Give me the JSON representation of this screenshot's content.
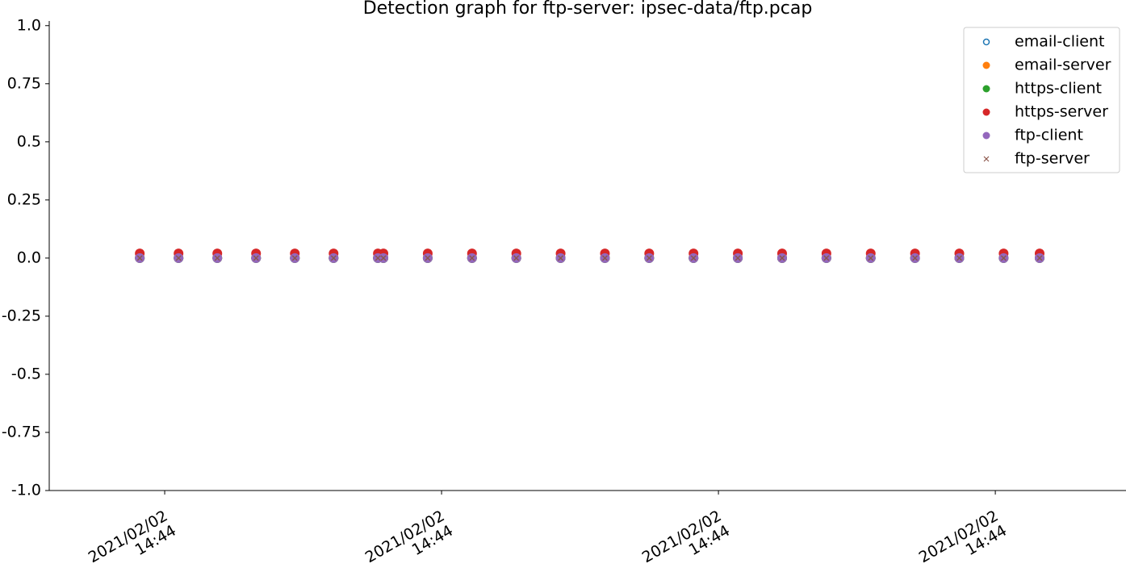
{
  "chart_data": {
    "type": "scatter",
    "title": "Detection graph for ftp-server: ipsec-data/ftp.pcap",
    "x": [
      -0.09,
      0.05,
      0.19,
      0.33,
      0.47,
      0.61,
      0.77,
      0.79,
      0.95,
      1.11,
      1.27,
      1.43,
      1.59,
      1.75,
      1.91,
      2.07,
      2.23,
      2.39,
      2.55,
      2.71,
      2.87,
      3.03,
      3.16
    ],
    "series": [
      {
        "name": "email-client",
        "color": "#1f77b4",
        "marker": "hollow",
        "values": [
          0,
          0,
          0,
          0,
          0,
          0,
          0,
          0,
          0,
          0,
          0,
          0,
          0,
          0,
          0,
          0,
          0,
          0,
          0,
          0,
          0,
          0,
          0
        ]
      },
      {
        "name": "email-server",
        "color": "#ff7f0e",
        "marker": "circle",
        "values": [
          0,
          0,
          0,
          0,
          0,
          0,
          0,
          0,
          0,
          0,
          0,
          0,
          0,
          0,
          0,
          0,
          0,
          0,
          0,
          0,
          0,
          0,
          0
        ]
      },
      {
        "name": "https-client",
        "color": "#2ca02c",
        "marker": "circle",
        "values": [
          0,
          0,
          0,
          0,
          0,
          0,
          0,
          0,
          0,
          0,
          0,
          0,
          0,
          0,
          0,
          0,
          0,
          0,
          0,
          0,
          0,
          0,
          0
        ]
      },
      {
        "name": "https-server",
        "color": "#d62728",
        "marker": "circle",
        "values": [
          0.02,
          0.02,
          0.02,
          0.02,
          0.02,
          0.02,
          0.02,
          0.02,
          0.02,
          0.02,
          0.02,
          0.02,
          0.02,
          0.02,
          0.02,
          0.02,
          0.02,
          0.02,
          0.02,
          0.02,
          0.02,
          0.02,
          0.02
        ]
      },
      {
        "name": "ftp-client",
        "color": "#9467bd",
        "marker": "circle",
        "values": [
          0,
          0,
          0,
          0,
          0,
          0,
          0,
          0,
          0,
          0,
          0,
          0,
          0,
          0,
          0,
          0,
          0,
          0,
          0,
          0,
          0,
          0,
          0
        ]
      },
      {
        "name": "ftp-server",
        "color": "#8c564b",
        "marker": "x",
        "values": [
          0,
          0,
          0,
          0,
          0,
          0,
          0,
          0,
          0,
          0,
          0,
          0,
          0,
          0,
          0,
          0,
          0,
          0,
          0,
          0,
          0,
          0,
          0
        ]
      }
    ],
    "xlim": [
      -0.417,
      3.472
    ],
    "xticks": [
      {
        "value": 0,
        "label": "2021/02/02\n14:44"
      },
      {
        "value": 1,
        "label": "2021/02/02\n14:44"
      },
      {
        "value": 2,
        "label": "2021/02/02\n14:44"
      },
      {
        "value": 3,
        "label": "2021/02/02\n14:44"
      }
    ],
    "ylim": [
      -1,
      1.02
    ],
    "yticks": [
      {
        "value": 1,
        "label": "1.0"
      },
      0.75,
      0.5,
      0.25,
      {
        "value": 0,
        "label": "0.0"
      },
      -0.25,
      -0.5,
      -0.75,
      {
        "value": -1,
        "label": "-1.0"
      }
    ],
    "legend": "upper right"
  }
}
